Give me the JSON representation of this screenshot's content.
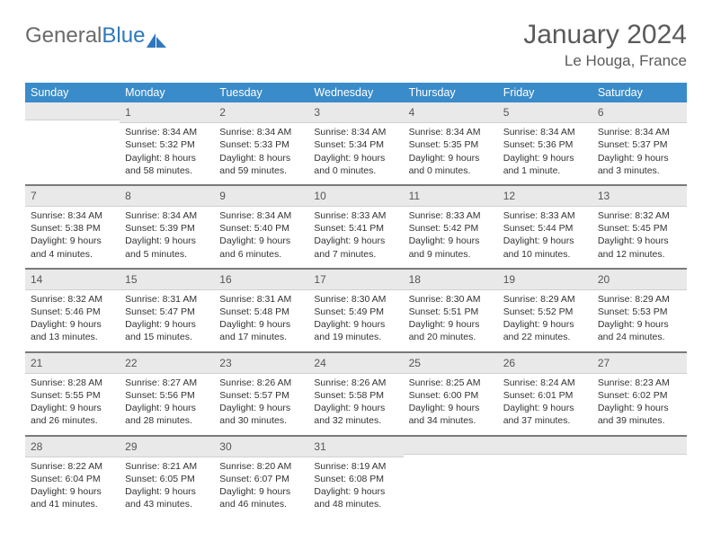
{
  "brand": {
    "word1": "General",
    "word2": "Blue"
  },
  "header": {
    "month_title": "January 2024",
    "location": "Le Houga, France"
  },
  "colors": {
    "header_bg": "#3a8bc9",
    "header_text": "#ffffff",
    "daynum_bg": "#e9e9e9",
    "text": "#333333",
    "page_bg": "#ffffff",
    "brand_gray": "#6a6a6a",
    "brand_blue": "#2f78bd"
  },
  "typography": {
    "month_title_fontsize": 30,
    "location_fontsize": 17,
    "day_header_fontsize": 12.5,
    "cell_fontsize": 10.5
  },
  "day_headers": [
    "Sunday",
    "Monday",
    "Tuesday",
    "Wednesday",
    "Thursday",
    "Friday",
    "Saturday"
  ],
  "weeks": [
    [
      {
        "num": "",
        "sunrise": "",
        "sunset": "",
        "daylight1": "",
        "daylight2": ""
      },
      {
        "num": "1",
        "sunrise": "Sunrise: 8:34 AM",
        "sunset": "Sunset: 5:32 PM",
        "daylight1": "Daylight: 8 hours",
        "daylight2": "and 58 minutes."
      },
      {
        "num": "2",
        "sunrise": "Sunrise: 8:34 AM",
        "sunset": "Sunset: 5:33 PM",
        "daylight1": "Daylight: 8 hours",
        "daylight2": "and 59 minutes."
      },
      {
        "num": "3",
        "sunrise": "Sunrise: 8:34 AM",
        "sunset": "Sunset: 5:34 PM",
        "daylight1": "Daylight: 9 hours",
        "daylight2": "and 0 minutes."
      },
      {
        "num": "4",
        "sunrise": "Sunrise: 8:34 AM",
        "sunset": "Sunset: 5:35 PM",
        "daylight1": "Daylight: 9 hours",
        "daylight2": "and 0 minutes."
      },
      {
        "num": "5",
        "sunrise": "Sunrise: 8:34 AM",
        "sunset": "Sunset: 5:36 PM",
        "daylight1": "Daylight: 9 hours",
        "daylight2": "and 1 minute."
      },
      {
        "num": "6",
        "sunrise": "Sunrise: 8:34 AM",
        "sunset": "Sunset: 5:37 PM",
        "daylight1": "Daylight: 9 hours",
        "daylight2": "and 3 minutes."
      }
    ],
    [
      {
        "num": "7",
        "sunrise": "Sunrise: 8:34 AM",
        "sunset": "Sunset: 5:38 PM",
        "daylight1": "Daylight: 9 hours",
        "daylight2": "and 4 minutes."
      },
      {
        "num": "8",
        "sunrise": "Sunrise: 8:34 AM",
        "sunset": "Sunset: 5:39 PM",
        "daylight1": "Daylight: 9 hours",
        "daylight2": "and 5 minutes."
      },
      {
        "num": "9",
        "sunrise": "Sunrise: 8:34 AM",
        "sunset": "Sunset: 5:40 PM",
        "daylight1": "Daylight: 9 hours",
        "daylight2": "and 6 minutes."
      },
      {
        "num": "10",
        "sunrise": "Sunrise: 8:33 AM",
        "sunset": "Sunset: 5:41 PM",
        "daylight1": "Daylight: 9 hours",
        "daylight2": "and 7 minutes."
      },
      {
        "num": "11",
        "sunrise": "Sunrise: 8:33 AM",
        "sunset": "Sunset: 5:42 PM",
        "daylight1": "Daylight: 9 hours",
        "daylight2": "and 9 minutes."
      },
      {
        "num": "12",
        "sunrise": "Sunrise: 8:33 AM",
        "sunset": "Sunset: 5:44 PM",
        "daylight1": "Daylight: 9 hours",
        "daylight2": "and 10 minutes."
      },
      {
        "num": "13",
        "sunrise": "Sunrise: 8:32 AM",
        "sunset": "Sunset: 5:45 PM",
        "daylight1": "Daylight: 9 hours",
        "daylight2": "and 12 minutes."
      }
    ],
    [
      {
        "num": "14",
        "sunrise": "Sunrise: 8:32 AM",
        "sunset": "Sunset: 5:46 PM",
        "daylight1": "Daylight: 9 hours",
        "daylight2": "and 13 minutes."
      },
      {
        "num": "15",
        "sunrise": "Sunrise: 8:31 AM",
        "sunset": "Sunset: 5:47 PM",
        "daylight1": "Daylight: 9 hours",
        "daylight2": "and 15 minutes."
      },
      {
        "num": "16",
        "sunrise": "Sunrise: 8:31 AM",
        "sunset": "Sunset: 5:48 PM",
        "daylight1": "Daylight: 9 hours",
        "daylight2": "and 17 minutes."
      },
      {
        "num": "17",
        "sunrise": "Sunrise: 8:30 AM",
        "sunset": "Sunset: 5:49 PM",
        "daylight1": "Daylight: 9 hours",
        "daylight2": "and 19 minutes."
      },
      {
        "num": "18",
        "sunrise": "Sunrise: 8:30 AM",
        "sunset": "Sunset: 5:51 PM",
        "daylight1": "Daylight: 9 hours",
        "daylight2": "and 20 minutes."
      },
      {
        "num": "19",
        "sunrise": "Sunrise: 8:29 AM",
        "sunset": "Sunset: 5:52 PM",
        "daylight1": "Daylight: 9 hours",
        "daylight2": "and 22 minutes."
      },
      {
        "num": "20",
        "sunrise": "Sunrise: 8:29 AM",
        "sunset": "Sunset: 5:53 PM",
        "daylight1": "Daylight: 9 hours",
        "daylight2": "and 24 minutes."
      }
    ],
    [
      {
        "num": "21",
        "sunrise": "Sunrise: 8:28 AM",
        "sunset": "Sunset: 5:55 PM",
        "daylight1": "Daylight: 9 hours",
        "daylight2": "and 26 minutes."
      },
      {
        "num": "22",
        "sunrise": "Sunrise: 8:27 AM",
        "sunset": "Sunset: 5:56 PM",
        "daylight1": "Daylight: 9 hours",
        "daylight2": "and 28 minutes."
      },
      {
        "num": "23",
        "sunrise": "Sunrise: 8:26 AM",
        "sunset": "Sunset: 5:57 PM",
        "daylight1": "Daylight: 9 hours",
        "daylight2": "and 30 minutes."
      },
      {
        "num": "24",
        "sunrise": "Sunrise: 8:26 AM",
        "sunset": "Sunset: 5:58 PM",
        "daylight1": "Daylight: 9 hours",
        "daylight2": "and 32 minutes."
      },
      {
        "num": "25",
        "sunrise": "Sunrise: 8:25 AM",
        "sunset": "Sunset: 6:00 PM",
        "daylight1": "Daylight: 9 hours",
        "daylight2": "and 34 minutes."
      },
      {
        "num": "26",
        "sunrise": "Sunrise: 8:24 AM",
        "sunset": "Sunset: 6:01 PM",
        "daylight1": "Daylight: 9 hours",
        "daylight2": "and 37 minutes."
      },
      {
        "num": "27",
        "sunrise": "Sunrise: 8:23 AM",
        "sunset": "Sunset: 6:02 PM",
        "daylight1": "Daylight: 9 hours",
        "daylight2": "and 39 minutes."
      }
    ],
    [
      {
        "num": "28",
        "sunrise": "Sunrise: 8:22 AM",
        "sunset": "Sunset: 6:04 PM",
        "daylight1": "Daylight: 9 hours",
        "daylight2": "and 41 minutes."
      },
      {
        "num": "29",
        "sunrise": "Sunrise: 8:21 AM",
        "sunset": "Sunset: 6:05 PM",
        "daylight1": "Daylight: 9 hours",
        "daylight2": "and 43 minutes."
      },
      {
        "num": "30",
        "sunrise": "Sunrise: 8:20 AM",
        "sunset": "Sunset: 6:07 PM",
        "daylight1": "Daylight: 9 hours",
        "daylight2": "and 46 minutes."
      },
      {
        "num": "31",
        "sunrise": "Sunrise: 8:19 AM",
        "sunset": "Sunset: 6:08 PM",
        "daylight1": "Daylight: 9 hours",
        "daylight2": "and 48 minutes."
      },
      {
        "num": "",
        "sunrise": "",
        "sunset": "",
        "daylight1": "",
        "daylight2": ""
      },
      {
        "num": "",
        "sunrise": "",
        "sunset": "",
        "daylight1": "",
        "daylight2": ""
      },
      {
        "num": "",
        "sunrise": "",
        "sunset": "",
        "daylight1": "",
        "daylight2": ""
      }
    ]
  ]
}
